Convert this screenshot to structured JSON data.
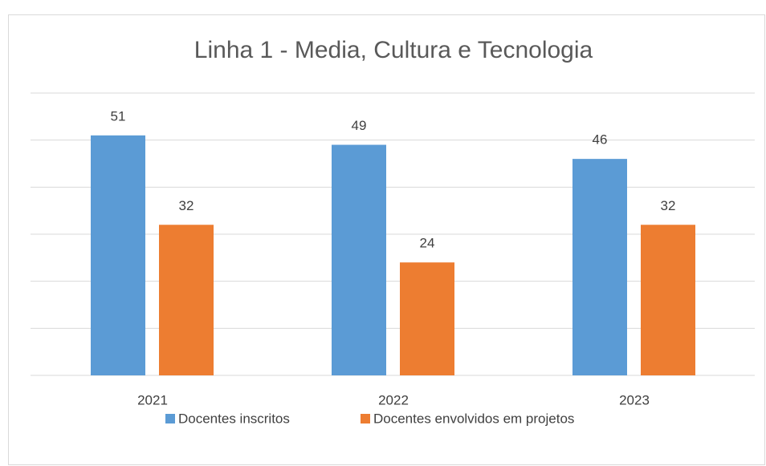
{
  "chart_data": {
    "type": "bar",
    "title": "Linha 1 - Media, Cultura e Tecnologia",
    "categories": [
      "2021",
      "2022",
      "2023"
    ],
    "series": [
      {
        "name": "Docentes inscritos",
        "color": "#5b9bd5",
        "values": [
          51,
          49,
          46
        ]
      },
      {
        "name": "Docentes envolvidos em projetos",
        "color": "#ed7d31",
        "values": [
          32,
          24,
          32
        ]
      }
    ],
    "ylim": [
      0,
      60
    ],
    "yticks": [
      0,
      10,
      20,
      30,
      40,
      50,
      60
    ],
    "grid": true,
    "legend": "bottom"
  }
}
